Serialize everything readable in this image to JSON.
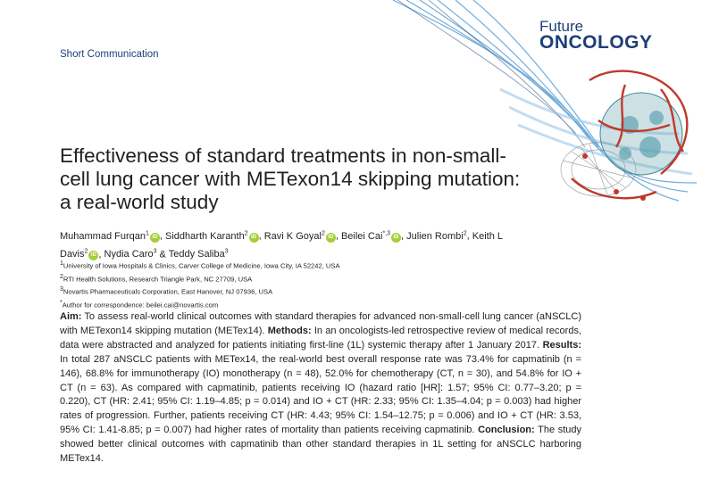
{
  "journal": {
    "prefix": "Future",
    "name": "ONCOLOGY"
  },
  "article_type": "Short Communication",
  "title": "Effectiveness of standard treatments in non-small-cell lung cancer with METexon14 skipping mutation: a real-world study",
  "authors": [
    {
      "name": "Muhammad Furqan",
      "sup": "1",
      "orcid": true
    },
    {
      "name": "Siddharth Karanth",
      "sup": "2",
      "orcid": true
    },
    {
      "name": "Ravi K Goyal",
      "sup": "2",
      "orcid": true
    },
    {
      "name": "Beilei Cai",
      "sup": "*,3",
      "orcid": true
    },
    {
      "name": "Julien Rombi",
      "sup": "2",
      "orcid": false
    },
    {
      "name": "Keith L Davis",
      "sup": "2",
      "orcid": true
    },
    {
      "name": "Nydia Caro",
      "sup": "3",
      "orcid": false
    },
    {
      "name": "Teddy Saliba",
      "sup": "3",
      "orcid": false
    }
  ],
  "orcid_label": "iD",
  "affiliations": [
    {
      "sup": "1",
      "text": "University of Iowa Hospitals & Clinics, Carver College of Medicine, Iowa City, IA 52242, USA"
    },
    {
      "sup": "2",
      "text": "RTI Health Solutions, Research Triangle Park, NC 27709, USA"
    },
    {
      "sup": "3",
      "text": "Novartis Pharmaceuticals Corporation, East Hanover, NJ 07936, USA"
    },
    {
      "sup": "*",
      "text": "Author for correspondence: beilei.cai@novartis.com"
    }
  ],
  "abstract": [
    {
      "heading": "Aim:",
      "text": " To assess real-world clinical outcomes with standard therapies for advanced non-small-cell lung cancer (aNSCLC) with METexon14 skipping mutation (METex14). "
    },
    {
      "heading": "Methods:",
      "text": " In an oncologists-led retrospective review of medical records, data were abstracted and analyzed for patients initiating first-line (1L) systemic therapy after 1 January 2017. "
    },
    {
      "heading": "Results:",
      "text": " In total 287 aNSCLC patients with METex14, the real-world best overall response rate was 73.4% for capmatinib (n = 146), 68.8% for immunotherapy (IO) monotherapy (n = 48), 52.0% for chemotherapy (CT, n = 30), and 54.8% for IO + CT (n = 63). As compared with capmatinib, patients receiving IO (hazard ratio [HR]: 1.57; 95% CI: 0.77–3.20; p = 0.220), CT (HR: 2.41; 95% CI: 1.19–4.85; p = 0.014) and IO + CT (HR: 2.33; 95% CI: 1.35–4.04; p = 0.003) had higher rates of progression. Further, patients receiving CT (HR: 4.43; 95% CI: 1.54–12.75; p = 0.006) and IO + CT (HR: 3.53, 95% CI: 1.41-8.85; p = 0.007) had higher rates of mortality than patients receiving capmatinib. "
    },
    {
      "heading": "Conclusion:",
      "text": " The study showed better clinical outcomes with capmatinib than other standard therapies in 1L setting for aNSCLC harboring METex14."
    }
  ],
  "colors": {
    "brand": "#1d3f78",
    "orcid": "#a6ce39",
    "text": "#231f20"
  }
}
